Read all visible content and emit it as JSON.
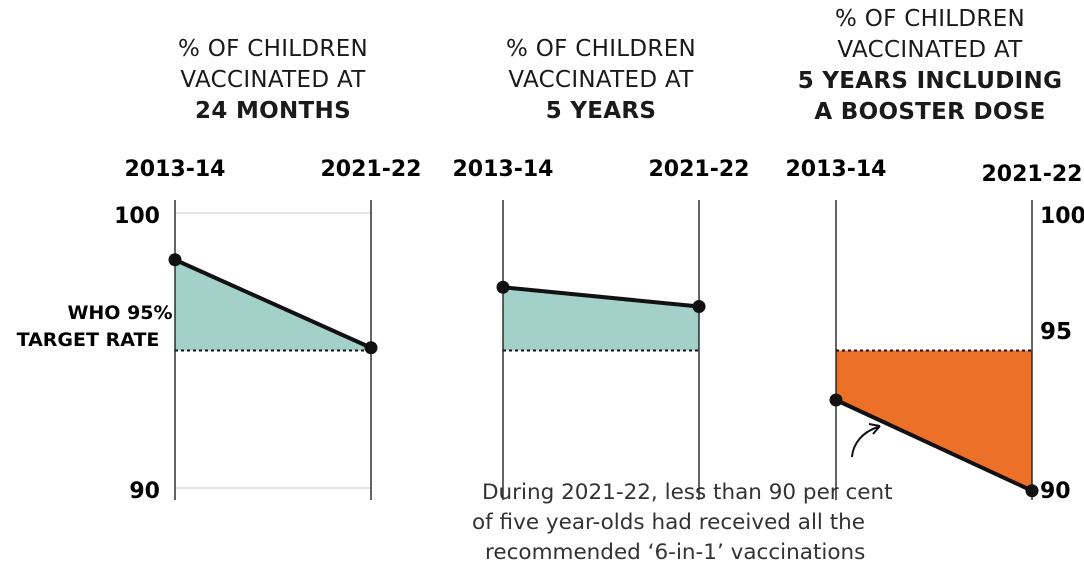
{
  "colors": {
    "fill_above_target": "#a3d0c9",
    "fill_below_target": "#ec7028",
    "line": "#111111",
    "grid": "#c8c8c8"
  },
  "target": {
    "label_line1": "WHO 95%",
    "label_line2": "TARGET RATE",
    "value_label": "95"
  },
  "annotation": {
    "lines": [
      "During 2021-22, less than 90 per cent",
      "of five year-olds had received all the",
      "recommended ‘6-in-1’ vaccinations"
    ]
  },
  "chart_data": [
    {
      "type": "line",
      "title_lines": [
        "% OF CHILDREN",
        "VACCINATED AT",
        "24 MONTHS"
      ],
      "x": [
        "2013-14",
        "2021-22"
      ],
      "values": [
        98.3,
        95.1
      ],
      "target": 95,
      "ylim": [
        90,
        100
      ],
      "ytick_labels": [
        "100",
        "90"
      ]
    },
    {
      "type": "line",
      "title_lines": [
        "% OF CHILDREN",
        "VACCINATED AT",
        "5 YEARS"
      ],
      "x": [
        "2013-14",
        "2021-22"
      ],
      "values": [
        97.3,
        96.6
      ],
      "target": 95,
      "ylim": [
        90,
        100
      ]
    },
    {
      "type": "line",
      "title_lines": [
        "% OF CHILDREN",
        "VACCINATED AT",
        "5 YEARS INCLUDING",
        "A BOOSTER DOSE"
      ],
      "x": [
        "2013-14",
        "2021-22"
      ],
      "values": [
        93.2,
        89.9
      ],
      "target": 95,
      "ylim": [
        90,
        100
      ],
      "ytick_labels": [
        "100",
        "95",
        "90"
      ]
    }
  ]
}
